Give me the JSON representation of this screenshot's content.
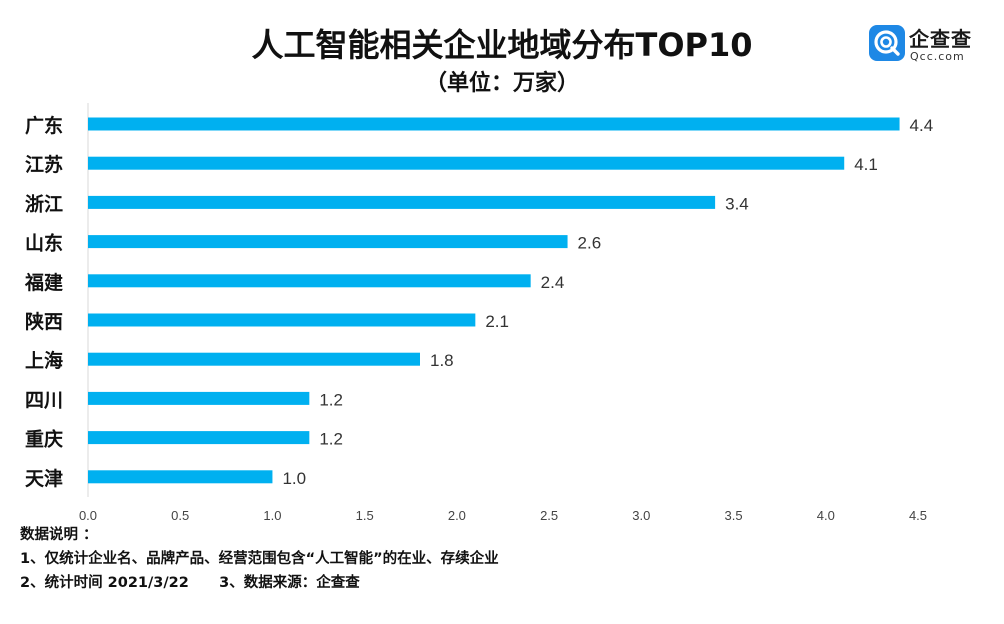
{
  "header": {
    "title": "人工智能相关企业地域分布TOP10",
    "subtitle": "（单位：万家）"
  },
  "logo": {
    "name": "企查查",
    "domain": "Qcc.com",
    "color": "#1e88e5"
  },
  "chart_data": {
    "type": "bar",
    "orientation": "horizontal",
    "categories": [
      "广东",
      "江苏",
      "浙江",
      "山东",
      "福建",
      "陕西",
      "上海",
      "四川",
      "重庆",
      "天津"
    ],
    "values": [
      4.4,
      4.1,
      3.4,
      2.6,
      2.4,
      2.1,
      1.8,
      1.2,
      1.2,
      1.0
    ],
    "value_labels": [
      "4.4",
      "4.1",
      "3.4",
      "2.6",
      "2.4",
      "2.1",
      "1.8",
      "1.2",
      "1.2",
      "1.0"
    ],
    "xlim": [
      0,
      4.5
    ],
    "x_ticks": [
      "0.0",
      "0.5",
      "1.0",
      "1.5",
      "2.0",
      "2.5",
      "3.0",
      "3.5",
      "4.0",
      "4.5"
    ],
    "bar_color": "#00b0f0",
    "grid": false
  },
  "notes": {
    "heading": "数据说明 ：",
    "line1": "1、仅统计企业名、品牌产品、经营范围包含“人工智能”的在业、存续企业",
    "line2": "2、统计时间 2021/3/22      3、数据来源：企查查"
  }
}
